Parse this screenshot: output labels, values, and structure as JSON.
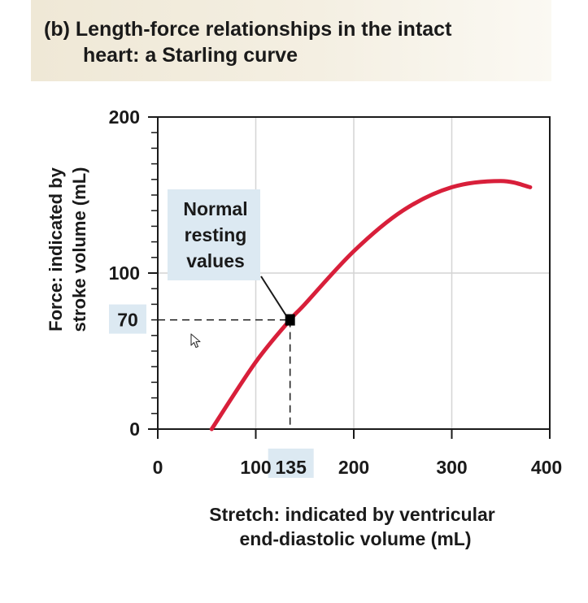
{
  "title": {
    "panel": "(b)",
    "line1": "Length-force relationships in the intact",
    "line2": "heart: a Starling curve"
  },
  "chart_data": {
    "type": "line",
    "x": [
      55,
      100,
      135,
      150,
      200,
      250,
      300,
      350,
      380
    ],
    "series": [
      {
        "values": [
          0,
          43,
          70,
          80,
          114,
          140,
          155,
          159,
          155
        ]
      }
    ],
    "line_color": "#d81f3a",
    "xlim": [
      0,
      400
    ],
    "ylim": [
      0,
      200
    ],
    "x_ticks": [
      "0",
      "100",
      "200",
      "300",
      "400"
    ],
    "y_ticks": [
      "0",
      "100",
      "200"
    ],
    "highlight": {
      "x": 135,
      "y": 70,
      "x_label": "135",
      "y_label": "70"
    },
    "annotation": {
      "lines": [
        "Normal",
        "resting",
        "values"
      ]
    },
    "xlabel_bold": "Stretch:",
    "xlabel_rest": "indicated by ventricular",
    "xlabel_line2": "end-diastolic volume (mL)",
    "ylabel_bold": "Force:",
    "ylabel_rest": "indicated by",
    "ylabel_line2": "stroke volume (mL)",
    "grid": true,
    "highlight_fill": "#dce9f2"
  }
}
